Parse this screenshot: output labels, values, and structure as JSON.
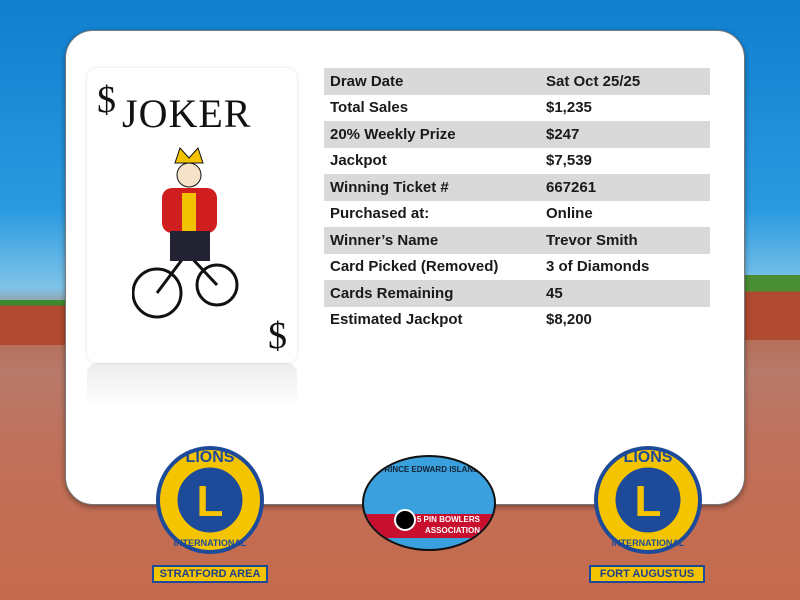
{
  "card": {
    "title": "JOKER",
    "symbol": "$"
  },
  "rows": [
    {
      "label": "Draw Date",
      "value": "Sat Oct 25/25"
    },
    {
      "label": "Total Sales",
      "value": "$1,235"
    },
    {
      "label": "20% Weekly Prize",
      "value": "$247"
    },
    {
      "label": "Jackpot",
      "value": "$7,539"
    },
    {
      "label": "Winning Ticket #",
      "value": "667261"
    },
    {
      "label": "Purchased at:",
      "value": "Online"
    },
    {
      "label": "Winner’s Name",
      "value": "Trevor Smith"
    },
    {
      "label": "Card Picked (Removed)",
      "value": "3 of Diamonds"
    },
    {
      "label": "Cards Remaining",
      "value": "45"
    },
    {
      "label": "Estimated Jackpot",
      "value": "$8,200"
    }
  ],
  "logos": {
    "left": {
      "top": "LIONS",
      "letter": "L",
      "bottom": "INTERNATIONAL",
      "label": "STRATFORD AREA"
    },
    "center": {
      "top": "PRINCE EDWARD ISLAND",
      "line1": "5 PIN BOWLERS",
      "line2": "ASSOCIATION"
    },
    "right": {
      "top": "LIONS",
      "letter": "L",
      "bottom": "INTERNATIONAL",
      "label": "FORT AUGUSTUS"
    }
  },
  "colors": {
    "lions_blue": "#1e4a9a",
    "lions_gold": "#f5c400",
    "row_gray": "#d9d9d9"
  }
}
